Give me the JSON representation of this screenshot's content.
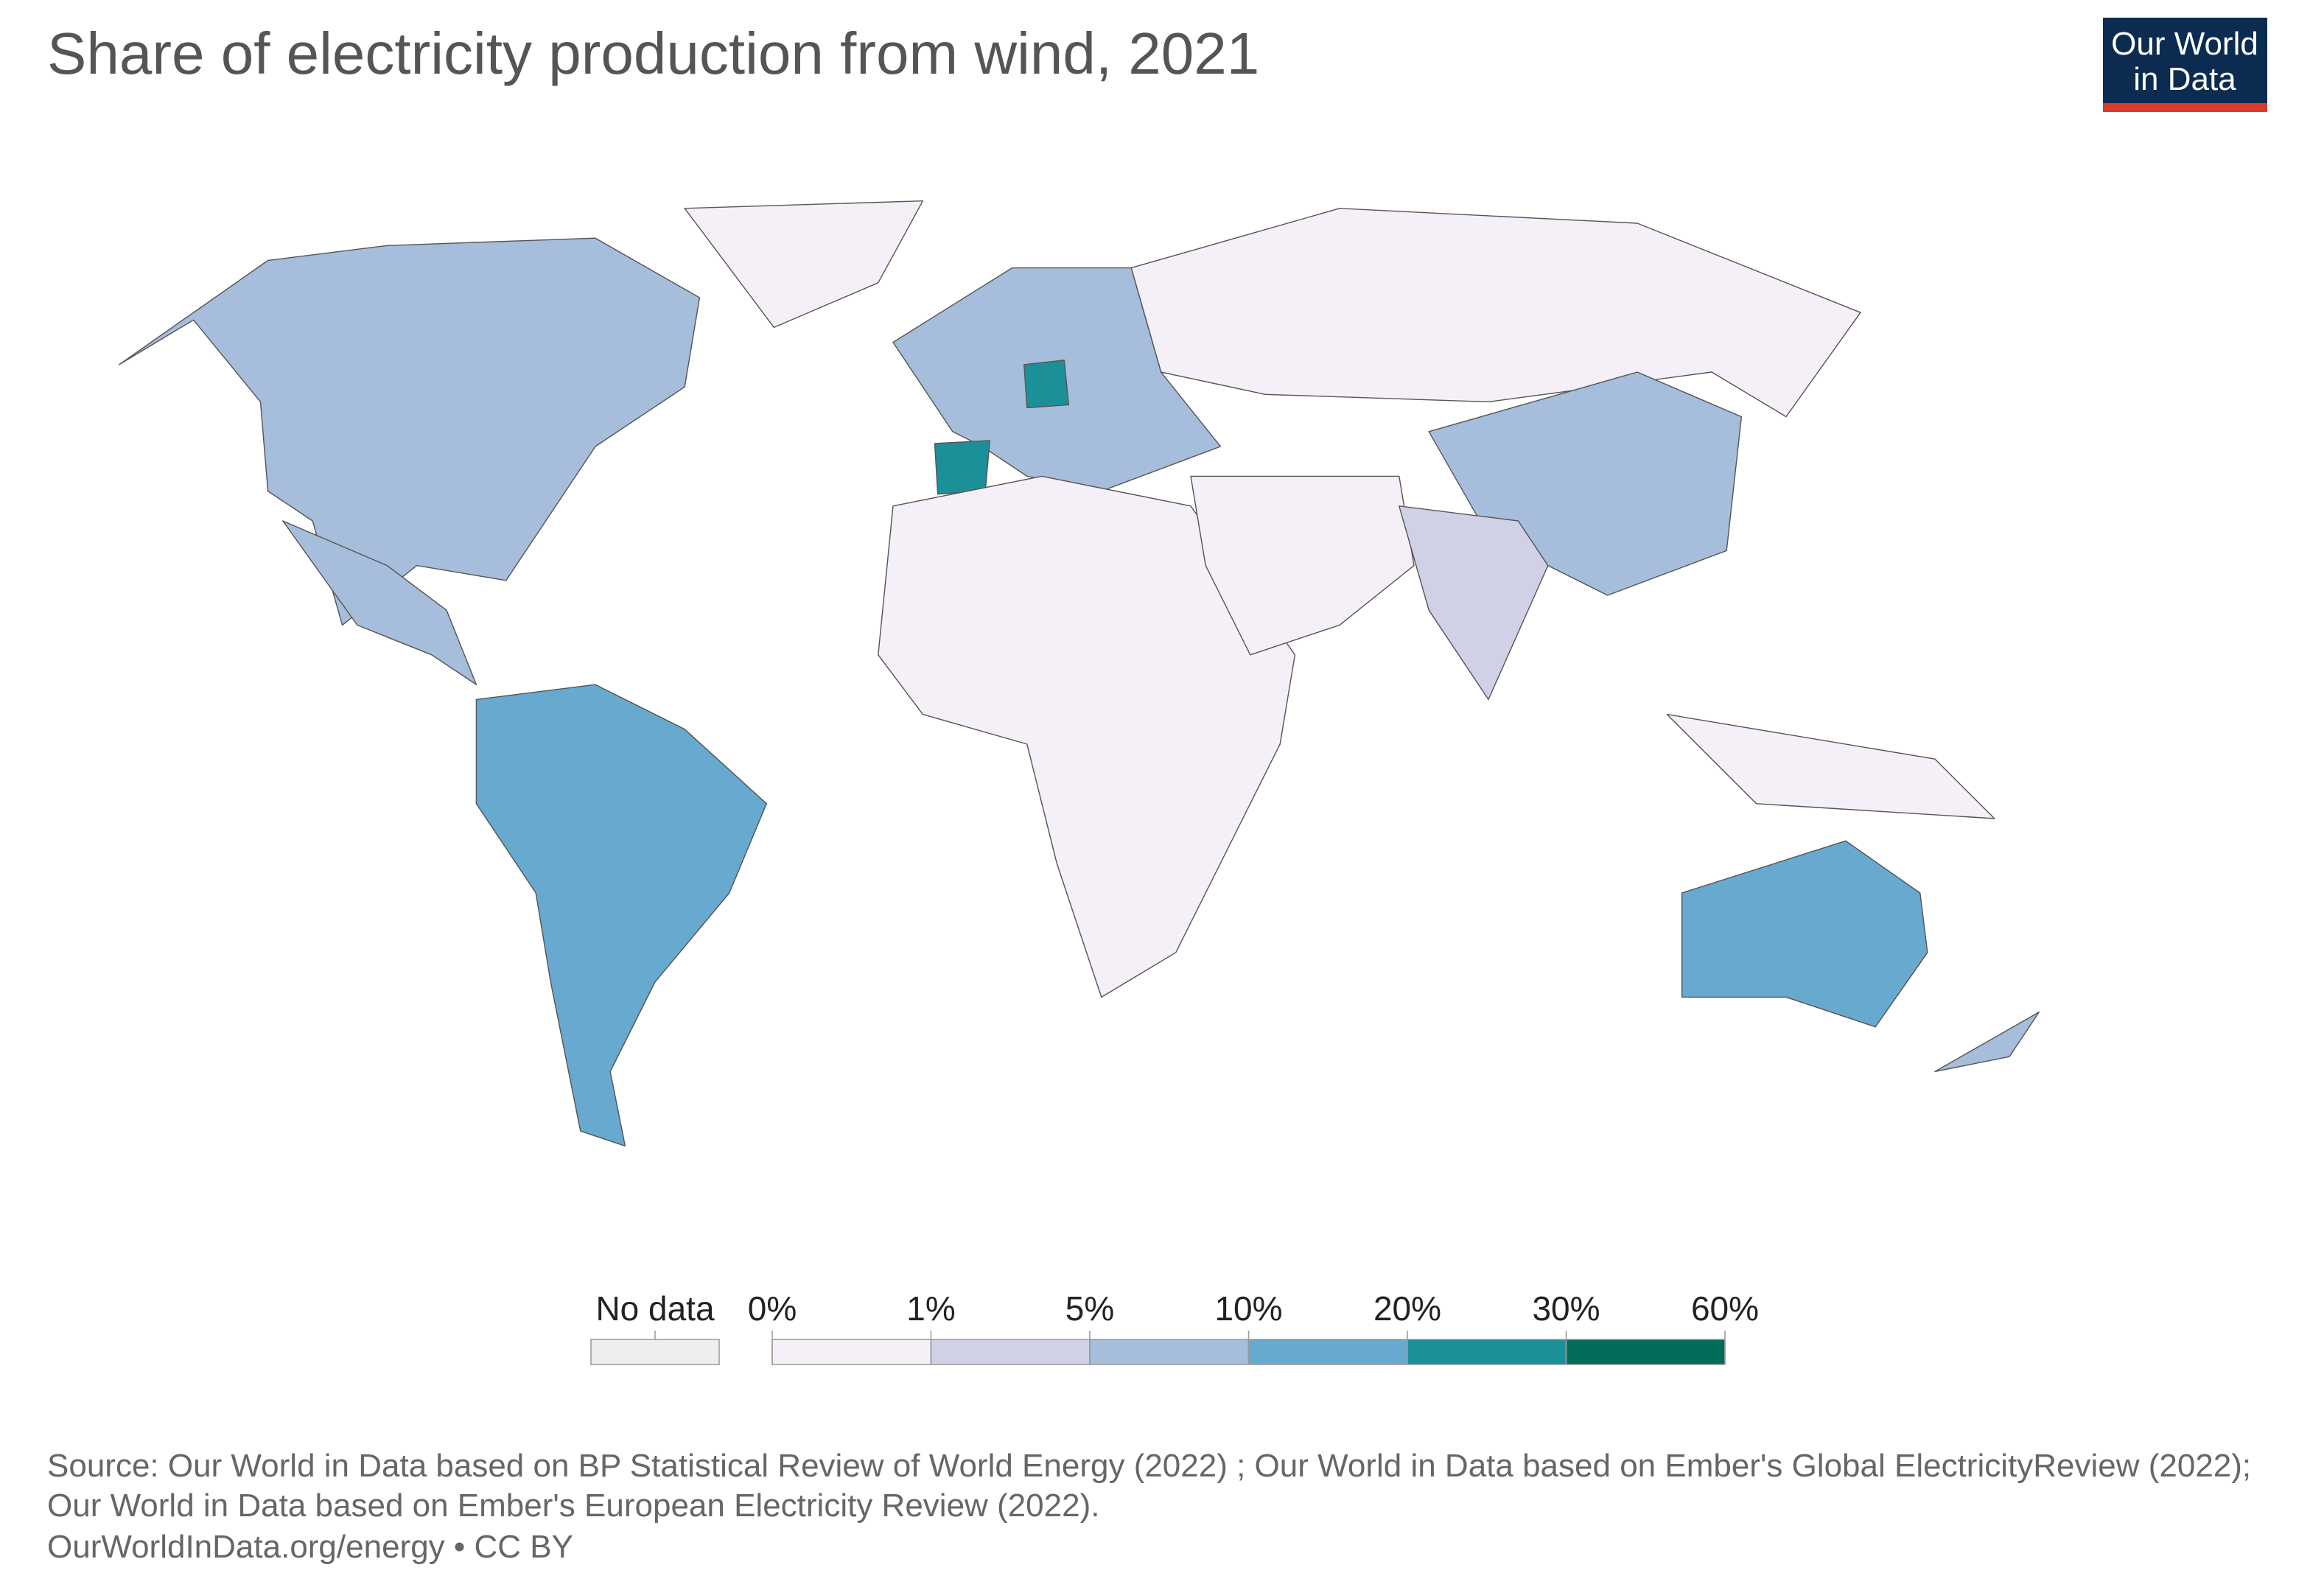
{
  "title": "Share of electricity production from wind, 2021",
  "logo": [
    "Our World",
    "in Data"
  ],
  "legend": {
    "no_data": {
      "label": "No data",
      "color": "#eeeeee"
    },
    "ticks": [
      {
        "value": 0,
        "label": "0%"
      },
      {
        "value": 1,
        "label": "1%"
      },
      {
        "value": 5,
        "label": "5%"
      },
      {
        "value": 10,
        "label": "10%"
      },
      {
        "value": 20,
        "label": "20%"
      },
      {
        "value": 30,
        "label": "30%"
      },
      {
        "value": 60,
        "label": "60%"
      }
    ],
    "colors": [
      "#f5eff7",
      "#d0d1e6",
      "#a6bddb",
      "#67a9cf",
      "#1c9099",
      "#016c59"
    ]
  },
  "source": [
    "Source: Our World in Data based on BP Statistical Review of World Energy (2022) ; Our World in Data based on Ember's Global ElectricityReview (2022);",
    "Our World in Data based on Ember's European Electricity Review (2022).",
    "OurWorldInData.org/energy • CC BY"
  ]
}
